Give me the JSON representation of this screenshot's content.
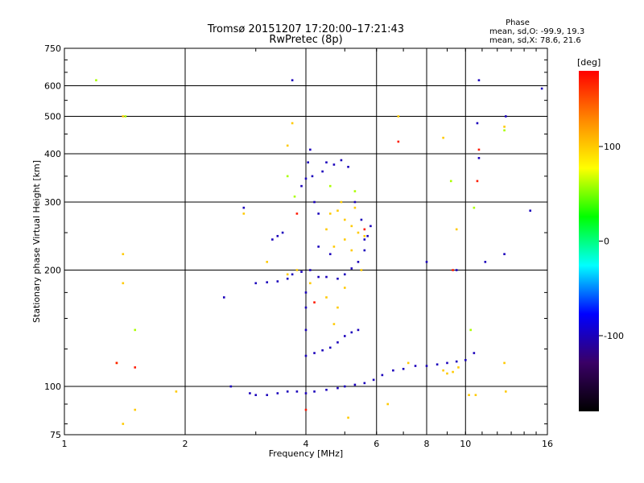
{
  "chart_data": {
    "type": "scatter",
    "title": "Tromsø 20151207 17:20:00–17:21:43",
    "subtitle": "RwPretec (8p)",
    "xlabel": "Frequency [MHz]",
    "ylabel": "Stationary phase Virtual Height [km]",
    "x_scale": "log",
    "y_scale": "log",
    "xlim": [
      1,
      16
    ],
    "ylim": [
      75,
      750
    ],
    "x_ticks": [
      1,
      2,
      4,
      6,
      8,
      10,
      16
    ],
    "y_ticks": [
      75,
      100,
      200,
      300,
      400,
      500,
      600,
      750
    ],
    "x_grid": [
      2,
      4,
      6,
      8,
      10
    ],
    "y_grid": [
      100,
      200,
      300,
      400,
      500,
      600
    ],
    "stats": {
      "heading": "Phase",
      "line_o": "mean, sd,O: -99.9, 19.3",
      "line_x": "mean, sd,X:  78.6, 21.6"
    },
    "colorbar": {
      "label": "[deg]",
      "range": [
        -180,
        180
      ],
      "ticks": [
        100,
        0,
        -100
      ],
      "colors": [
        "#000000",
        "#3a0066",
        "#0000ff",
        "#00ffff",
        "#00ff00",
        "#ffff00",
        "#ff8800",
        "#ff0000"
      ]
    },
    "series": [
      {
        "phase": -100,
        "points": [
          [
            2.6,
            100
          ],
          [
            2.9,
            96
          ],
          [
            3.0,
            95
          ],
          [
            3.2,
            95
          ],
          [
            3.4,
            96
          ],
          [
            3.6,
            97
          ],
          [
            3.8,
            97
          ],
          [
            4.0,
            96
          ],
          [
            4.2,
            97
          ],
          [
            4.5,
            98
          ],
          [
            4.8,
            99
          ],
          [
            5.0,
            100
          ],
          [
            5.3,
            101
          ],
          [
            5.6,
            102
          ],
          [
            5.9,
            104
          ],
          [
            6.2,
            107
          ],
          [
            6.6,
            110
          ],
          [
            7.0,
            111
          ],
          [
            7.5,
            113
          ],
          [
            8.0,
            113
          ],
          [
            8.5,
            114
          ],
          [
            9.0,
            115
          ],
          [
            9.5,
            116
          ],
          [
            10.0,
            117
          ],
          [
            10.5,
            122
          ]
        ]
      },
      {
        "phase": -100,
        "points": [
          [
            3.0,
            185
          ],
          [
            3.2,
            186
          ],
          [
            3.4,
            187
          ],
          [
            3.6,
            190
          ],
          [
            3.7,
            195
          ],
          [
            3.9,
            198
          ],
          [
            4.1,
            200
          ],
          [
            4.3,
            192
          ],
          [
            4.5,
            192
          ],
          [
            4.8,
            190
          ],
          [
            5.0,
            195
          ],
          [
            5.2,
            202
          ],
          [
            5.4,
            210
          ],
          [
            5.6,
            225
          ],
          [
            5.7,
            245
          ],
          [
            5.8,
            260
          ]
        ]
      },
      {
        "phase": -100,
        "points": [
          [
            3.9,
            330
          ],
          [
            4.0,
            345
          ],
          [
            4.05,
            380
          ],
          [
            4.1,
            410
          ],
          [
            4.15,
            350
          ],
          [
            4.2,
            300
          ],
          [
            4.3,
            280
          ],
          [
            4.4,
            360
          ],
          [
            4.5,
            380
          ],
          [
            4.7,
            375
          ],
          [
            4.9,
            385
          ],
          [
            5.1,
            370
          ],
          [
            5.3,
            300
          ],
          [
            5.5,
            270
          ],
          [
            5.6,
            240
          ]
        ]
      },
      {
        "phase": -100,
        "points": [
          [
            4.0,
            120
          ],
          [
            4.2,
            122
          ],
          [
            4.4,
            124
          ],
          [
            4.6,
            126
          ],
          [
            4.8,
            130
          ],
          [
            5.0,
            135
          ],
          [
            5.2,
            138
          ],
          [
            5.4,
            140
          ]
        ]
      },
      {
        "phase": -100,
        "points": [
          [
            3.3,
            240
          ],
          [
            3.4,
            245
          ],
          [
            3.5,
            250
          ],
          [
            4.0,
            160
          ],
          [
            4.0,
            175
          ],
          [
            4.0,
            140
          ],
          [
            4.3,
            230
          ],
          [
            4.6,
            220
          ],
          [
            2.5,
            170
          ],
          [
            2.8,
            290
          ],
          [
            10.8,
            620
          ],
          [
            10.7,
            480
          ],
          [
            12.5,
            220
          ],
          [
            11.2,
            210
          ],
          [
            8.0,
            210
          ],
          [
            9.5,
            200
          ],
          [
            3.7,
            620
          ],
          [
            12.6,
            500
          ],
          [
            10.8,
            390
          ],
          [
            15.5,
            590
          ],
          [
            14.5,
            285
          ]
        ]
      },
      {
        "phase": 100,
        "points": [
          [
            4.6,
            280
          ],
          [
            4.8,
            285
          ],
          [
            5.0,
            270
          ],
          [
            5.2,
            260
          ],
          [
            5.4,
            250
          ],
          [
            5.6,
            245
          ],
          [
            5.0,
            240
          ],
          [
            4.7,
            230
          ],
          [
            5.2,
            225
          ],
          [
            4.5,
            255
          ],
          [
            4.9,
            300
          ],
          [
            5.3,
            290
          ],
          [
            3.8,
            200
          ],
          [
            3.6,
            195
          ],
          [
            4.1,
            185
          ],
          [
            8.8,
            110
          ],
          [
            9.0,
            108
          ],
          [
            9.3,
            109
          ],
          [
            9.6,
            112
          ],
          [
            4.5,
            170
          ],
          [
            5.0,
            180
          ],
          [
            5.5,
            200
          ]
        ]
      },
      {
        "phase": 100,
        "points": [
          [
            1.4,
            220
          ],
          [
            1.4,
            185
          ],
          [
            1.35,
            115
          ],
          [
            1.4,
            80
          ],
          [
            1.5,
            87
          ],
          [
            1.9,
            97
          ],
          [
            1.4,
            500
          ],
          [
            3.7,
            480
          ],
          [
            3.6,
            420
          ],
          [
            6.8,
            500
          ],
          [
            8.8,
            440
          ],
          [
            9.5,
            255
          ],
          [
            12.5,
            470
          ],
          [
            12.5,
            115
          ],
          [
            2.8,
            280
          ],
          [
            3.2,
            210
          ],
          [
            7.2,
            115
          ],
          [
            6.4,
            90
          ],
          [
            10.2,
            95
          ],
          [
            10.6,
            95
          ],
          [
            12.6,
            97
          ],
          [
            5.1,
            83
          ],
          [
            4.8,
            160
          ],
          [
            4.7,
            145
          ]
        ]
      },
      {
        "phase": 60,
        "points": [
          [
            1.2,
            620
          ],
          [
            1.42,
            500
          ],
          [
            12.5,
            460
          ],
          [
            3.6,
            350
          ],
          [
            3.75,
            310
          ],
          [
            4.6,
            330
          ],
          [
            5.3,
            320
          ],
          [
            9.2,
            340
          ],
          [
            10.5,
            290
          ],
          [
            1.5,
            140
          ],
          [
            10.3,
            140
          ]
        ]
      },
      {
        "phase": 170,
        "points": [
          [
            6.8,
            430
          ],
          [
            4.0,
            87
          ],
          [
            1.35,
            115
          ],
          [
            10.7,
            340
          ],
          [
            9.3,
            200
          ],
          [
            5.6,
            255
          ],
          [
            1.5,
            112
          ],
          [
            4.2,
            165
          ],
          [
            3.8,
            280
          ],
          [
            10.8,
            410
          ]
        ]
      }
    ]
  }
}
